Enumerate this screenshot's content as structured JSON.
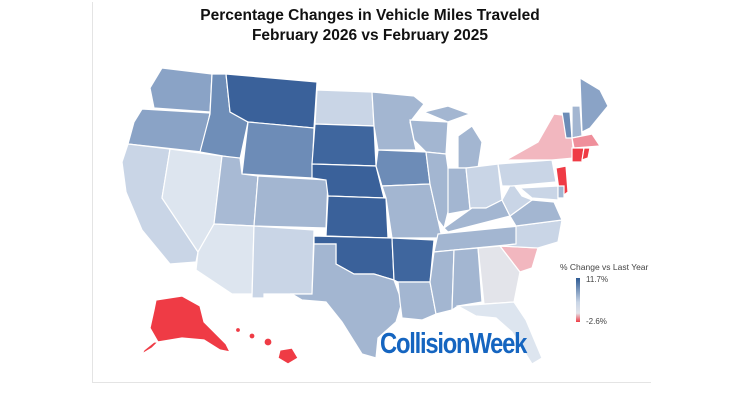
{
  "title": {
    "line1": "Percentage Changes in Vehicle Miles Traveled",
    "line2": "February 2026 vs February 2025"
  },
  "legend": {
    "title": "% Change vs Last Year",
    "max_label": "11.7%",
    "min_label": "-2.6%",
    "max_value": 11.7,
    "min_value": -2.6,
    "max_color": "#2e5a93",
    "min_color": "#ef3b45"
  },
  "brand": "CollisionWeek",
  "colors": {
    "brand": "#1565c0",
    "dark_blue": "#3a619a",
    "mid_blue": "#6d8cb7",
    "light_blue": "#a3b6d1",
    "pale_blue": "#c9d5e6",
    "very_pale": "#dde5ef",
    "neutral": "#e3e4ea",
    "light_red": "#f2b7bf",
    "mid_red": "#ef8f9b",
    "red": "#ef3b45"
  }
}
